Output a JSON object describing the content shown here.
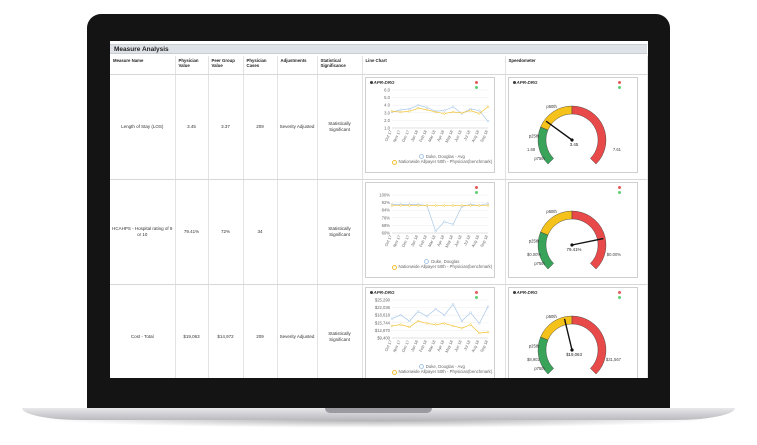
{
  "window": {
    "title": "Measure Analysis"
  },
  "table": {
    "headers": {
      "measure": "Measure Name",
      "physician_value": "Physician Value",
      "peer_value": "Peer Group Value",
      "cases": "Physician Cases",
      "adjustments": "Adjustments",
      "significance": "Statistical Significance",
      "line_chart": "Line Chart",
      "speedometer": "Speedometer"
    },
    "rows": [
      {
        "measure": "Length of Stay (LOS)",
        "physician_value": "3.45",
        "peer_value": "3.37",
        "cases": "209",
        "adjustments": "Severity Adjusted",
        "significance": "Statistically Significant"
      },
      {
        "measure": "HCAHPS - Hospital rating of 9 or 10",
        "physician_value": "79.41%",
        "peer_value": "72%",
        "cases": "34",
        "adjustments": "",
        "significance": "Statistically Significant"
      },
      {
        "measure": "Cost - Total",
        "physician_value": "$19,063",
        "peer_value": "$14,972",
        "cases": "209",
        "adjustments": "Severity Adjusted",
        "significance": "Statistically Significant"
      }
    ]
  },
  "icons": {
    "dot_red": "#e55c5c",
    "dot_green": "#5fcf73"
  },
  "colors": {
    "line_physician": "#a9c8e8",
    "line_benchmark": "#f2c230",
    "gauge_green": "#3aa35a",
    "gauge_yellow": "#f5c21b",
    "gauge_red": "#e84a4a"
  },
  "chart_data": [
    {
      "type": "line",
      "tag": "APR-DRG",
      "categories": [
        "Oct 17",
        "Nov 17",
        "Dec 17",
        "Jan 18",
        "Feb 18",
        "Mar 18",
        "Apr 18",
        "May 18",
        "Jun 18",
        "Jul 18",
        "Aug 18",
        "Sep 18"
      ],
      "y_ticks": [
        "6.0",
        "5.0",
        "4.0",
        "3.0",
        "2.0",
        "1.0"
      ],
      "ylim": [
        1,
        6
      ],
      "series": [
        {
          "name": "Duke, Douglas - Avg",
          "values": [
            3.1,
            3.4,
            3.5,
            4.0,
            3.7,
            3.2,
            3.3,
            3.8,
            2.9,
            3.5,
            3.3,
            1.9
          ]
        },
        {
          "name": "Nationwide Allpayer 50th - Physician(benchmark)",
          "values": [
            3.2,
            3.1,
            3.2,
            3.6,
            3.4,
            3.1,
            2.9,
            3.1,
            3.0,
            3.3,
            2.9,
            3.8
          ]
        }
      ]
    },
    {
      "type": "line",
      "tag": "",
      "categories": [
        "Oct 17",
        "Nov 17",
        "Dec 17",
        "Jan 18",
        "Feb 18",
        "Mar 18",
        "Apr 18",
        "May 18",
        "Jun 18",
        "Jul 18",
        "Aug 18",
        "Sep 18"
      ],
      "y_ticks": [
        "100%",
        "92%",
        "84%",
        "76%",
        "68%",
        "60%"
      ],
      "ylim": [
        60,
        100
      ],
      "series": [
        {
          "name": "Duke, Douglas",
          "values": [
            90,
            90,
            90,
            90,
            89,
            62,
            72,
            69,
            88,
            90,
            89,
            91
          ]
        },
        {
          "name": "Nationwide Allpayer 50th - Physician(benchmark)",
          "values": [
            89,
            89,
            89,
            89,
            89,
            89,
            89,
            89,
            89,
            89,
            89,
            89
          ]
        }
      ]
    },
    {
      "type": "line",
      "tag": "APR-DRG",
      "categories": [
        "Oct 17",
        "Nov 17",
        "Dec 17",
        "Jan 18",
        "Feb 18",
        "Mar 18",
        "Apr 18",
        "May 18",
        "Jun 18",
        "Jul 18",
        "Aug 18",
        "Sep 18"
      ],
      "y_ticks": [
        "$25,290",
        "$22,036",
        "$18,618",
        "$15,744",
        "$12,870",
        "$9,400"
      ],
      "ylim": [
        9400,
        25290
      ],
      "series": [
        {
          "name": "Duke, Douglas - Avg",
          "values": [
            17500,
            19000,
            16500,
            20500,
            18500,
            21500,
            19000,
            23500,
            16500,
            20000,
            15500,
            22500
          ]
        },
        {
          "name": "Nationwide Allpayer 50th - Physician(benchmark)",
          "values": [
            14500,
            15000,
            14000,
            16500,
            15500,
            15000,
            15500,
            14500,
            13500,
            15000,
            11500,
            11800
          ]
        }
      ]
    }
  ],
  "gauges": [
    {
      "tag": "APR-DRG",
      "min_label": "1.68",
      "max_label": "7.61",
      "value_label": "3.45",
      "labels": [
        "p25th",
        "p50th",
        "p75th"
      ],
      "needle_fraction": 0.3
    },
    {
      "tag": "",
      "min_label": "$0.00%",
      "max_label": "$0.00%",
      "value_label": "79.41%",
      "labels": [
        "p25th",
        "p50th",
        "p75th"
      ],
      "needle_fraction": 0.79
    },
    {
      "tag": "APR-DRG",
      "min_label": "$8,902",
      "max_label": "$31,567",
      "value_label": "$19,063",
      "labels": [
        "p25th",
        "p50th",
        "p75th"
      ],
      "needle_fraction": 0.45
    }
  ]
}
